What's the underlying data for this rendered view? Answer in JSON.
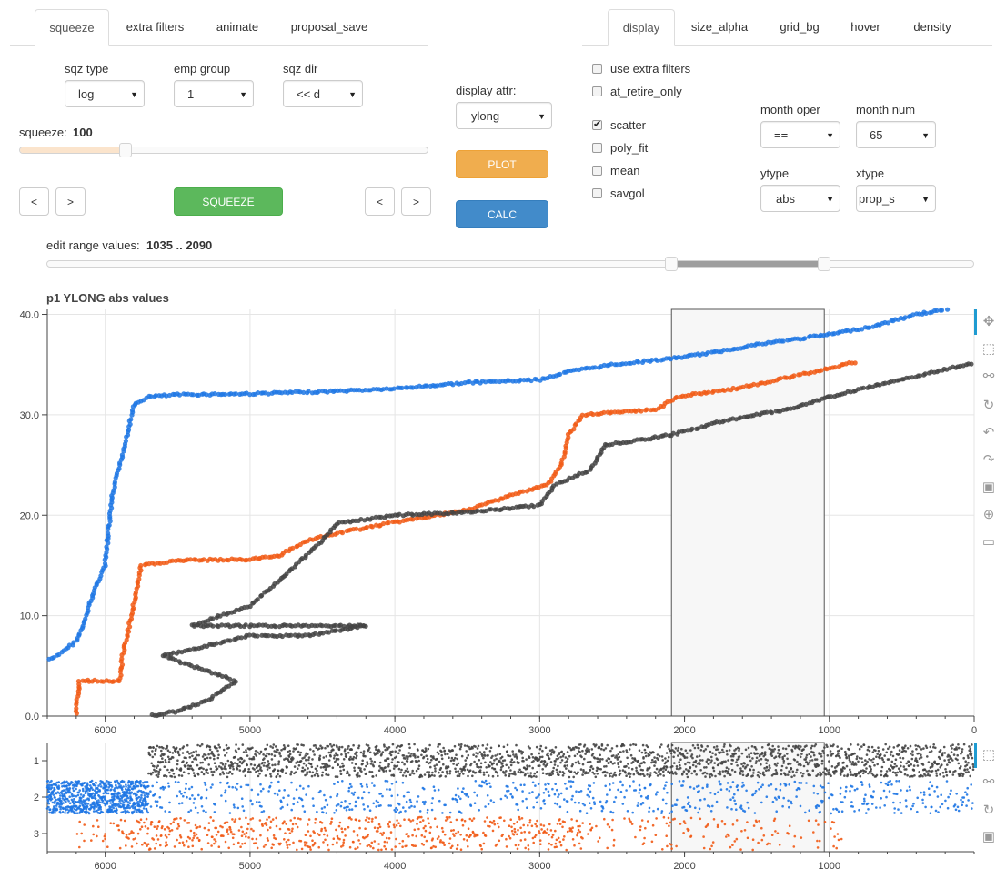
{
  "left_tabs": [
    "squeeze",
    "extra filters",
    "animate",
    "proposal_save"
  ],
  "right_tabs": [
    "display",
    "size_alpha",
    "grid_bg",
    "hover",
    "density"
  ],
  "controls": {
    "sqz_type": {
      "label": "sqz type",
      "value": "log"
    },
    "emp_group": {
      "label": "emp group",
      "value": "1"
    },
    "sqz_dir": {
      "label": "sqz dir",
      "value": "<< d"
    },
    "squeeze_label": "squeeze:",
    "squeeze_value": "100",
    "squeeze_level": 0.26,
    "prev": "<",
    "next": ">",
    "squeeze_button": "SQUEEZE",
    "display_attr": {
      "label": "display attr:",
      "value": "ylong"
    },
    "plot_button": "PLOT",
    "calc_button": "CALC",
    "edit_range_label": "edit range values:",
    "edit_range_value": "1035 .. 2090",
    "range_low": 1035,
    "range_high": 2090
  },
  "checkboxes": [
    {
      "label": "use extra filters",
      "checked": false
    },
    {
      "label": "at_retire_only",
      "checked": false
    },
    {
      "label": "scatter",
      "checked": true
    },
    {
      "label": "poly_fit",
      "checked": false
    },
    {
      "label": "mean",
      "checked": false
    },
    {
      "label": "savgol",
      "checked": false
    }
  ],
  "right_selects": {
    "month_oper": {
      "label": "month oper",
      "value": "=="
    },
    "month_num": {
      "label": "month num",
      "value": "65"
    },
    "ytype": {
      "label": "ytype",
      "value": "abs"
    },
    "xtype": {
      "label": "xtype",
      "value": "prop_s"
    }
  },
  "colors": {
    "blue": "#1f77e4",
    "orange": "#f15a15",
    "dark": "#444444",
    "green": "#5cb85c",
    "accent": "#1f9bd1"
  },
  "toolbar_icons": [
    "pan-icon",
    "box-zoom-icon",
    "wheel-zoom-icon",
    "reset-icon",
    "undo-icon",
    "redo-icon",
    "save-icon",
    "crosshair-icon",
    "hover-icon"
  ],
  "toolbar_icons_small": [
    "box-zoom-icon",
    "wheel-zoom-icon",
    "reset-icon",
    "save-icon"
  ],
  "chart_data": [
    {
      "type": "scatter",
      "title": "p1 YLONG abs values",
      "xlim": [
        6400,
        0
      ],
      "ylim": [
        0,
        40.5
      ],
      "xticks": [
        "6000",
        "5000",
        "4000",
        "3000",
        "2000",
        "1000",
        "0"
      ],
      "yticks": [
        "0.0",
        "10.0",
        "20.0",
        "30.0",
        "40.0"
      ],
      "selection": [
        2090,
        1035
      ],
      "series": [
        {
          "color": "blue",
          "points": [
            [
              6400,
              5.5
            ],
            [
              6300,
              6.3
            ],
            [
              6200,
              7.5
            ],
            [
              6150,
              9
            ],
            [
              6100,
              11.5
            ],
            [
              6050,
              13.5
            ],
            [
              6000,
              15
            ],
            [
              5980,
              18
            ],
            [
              5950,
              22
            ],
            [
              5900,
              25
            ],
            [
              5850,
              28
            ],
            [
              5800,
              31
            ],
            [
              5700,
              31.8
            ],
            [
              5500,
              32
            ],
            [
              5000,
              32.1
            ],
            [
              4500,
              32.3
            ],
            [
              4000,
              32.6
            ],
            [
              3500,
              33.2
            ],
            [
              3000,
              33.5
            ],
            [
              2800,
              34.3
            ],
            [
              2500,
              35
            ],
            [
              2090,
              35.6
            ],
            [
              1800,
              36.2
            ],
            [
              1500,
              37
            ],
            [
              1200,
              37.6
            ],
            [
              1000,
              38
            ],
            [
              700,
              38.8
            ],
            [
              400,
              40
            ],
            [
              0,
              41
            ]
          ]
        },
        {
          "color": "orange",
          "points": [
            [
              6200,
              0.3
            ],
            [
              6180,
              3.5
            ],
            [
              5900,
              3.5
            ],
            [
              5880,
              6
            ],
            [
              5820,
              10
            ],
            [
              5750,
              15
            ],
            [
              5500,
              15.5
            ],
            [
              5000,
              15.6
            ],
            [
              4800,
              16
            ],
            [
              4600,
              17.5
            ],
            [
              4300,
              18.5
            ],
            [
              4000,
              19.3
            ],
            [
              3500,
              20.5
            ],
            [
              3200,
              22
            ],
            [
              2950,
              23
            ],
            [
              2850,
              25
            ],
            [
              2800,
              28
            ],
            [
              2700,
              30
            ],
            [
              2500,
              30.2
            ],
            [
              2200,
              30.5
            ],
            [
              2050,
              31.8
            ],
            [
              1700,
              32.5
            ],
            [
              1500,
              33
            ],
            [
              1200,
              34
            ],
            [
              900,
              35
            ],
            [
              800,
              35.3
            ]
          ]
        },
        {
          "color": "dark",
          "points": [
            [
              5700,
              0
            ],
            [
              5500,
              0.5
            ],
            [
              5300,
              1.5
            ],
            [
              5100,
              3.5
            ],
            [
              5600,
              6
            ],
            [
              5300,
              7
            ],
            [
              5000,
              8
            ],
            [
              4600,
              8
            ],
            [
              4200,
              9
            ],
            [
              5400,
              9
            ],
            [
              5000,
              11
            ],
            [
              4800,
              13.5
            ],
            [
              4500,
              17.5
            ],
            [
              4400,
              19.2
            ],
            [
              4000,
              20
            ],
            [
              3500,
              20.3
            ],
            [
              3000,
              21
            ],
            [
              2900,
              23
            ],
            [
              2650,
              24.5
            ],
            [
              2550,
              27
            ],
            [
              2400,
              27.3
            ],
            [
              2090,
              28
            ],
            [
              1700,
              29.5
            ],
            [
              1300,
              30.5
            ],
            [
              1000,
              31.8
            ],
            [
              500,
              33.5
            ],
            [
              0,
              35.2
            ]
          ]
        }
      ]
    },
    {
      "type": "scatter",
      "xlim": [
        6400,
        0
      ],
      "ylim": [
        0.5,
        3.5
      ],
      "xticks": [
        "6000",
        "5000",
        "4000",
        "3000",
        "2000",
        "1000"
      ],
      "yticks": [
        "1",
        "2",
        "3"
      ],
      "selection": [
        2090,
        1035
      ],
      "series": [
        {
          "color": "dark",
          "y": 1,
          "x_range": [
            5700,
            0
          ]
        },
        {
          "color": "blue",
          "y": 2,
          "x_range": [
            6400,
            0
          ]
        },
        {
          "color": "orange",
          "y": 3,
          "x_range": [
            6200,
            800
          ]
        }
      ]
    }
  ]
}
